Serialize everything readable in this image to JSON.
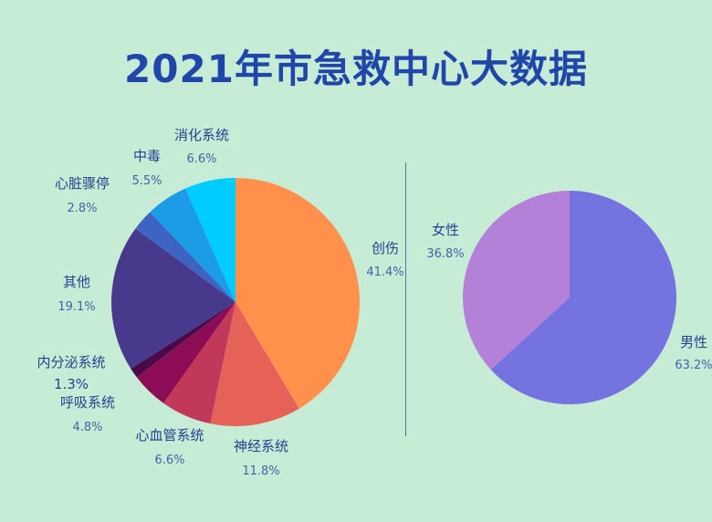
{
  "title": "2021年市急救中心大数据",
  "colors": {
    "background": "#c6ecd6",
    "title": "#1f46a8"
  },
  "chart_data": [
    {
      "type": "pie",
      "slices": [
        {
          "label": "创伤",
          "value_text": "41.4%",
          "value": 41.4,
          "color": "#ff914d"
        },
        {
          "label": "神经系统",
          "value_text": "11.8%",
          "value": 11.8,
          "color": "#e66157"
        },
        {
          "label": "心血管系统",
          "value_text": "6.6%",
          "value": 6.6,
          "color": "#c2385a"
        },
        {
          "label": "呼吸系统",
          "value_text": "4.8%",
          "value": 4.8,
          "color": "#8c0d56"
        },
        {
          "label": "内分泌系统",
          "value_text": "1.3%",
          "value": 1.3,
          "color": "#4a0a4a"
        },
        {
          "label": "其他",
          "value_text": "19.1%",
          "value": 19.1,
          "color": "#473a8c"
        },
        {
          "label": "心脏骤停",
          "value_text": "2.8%",
          "value": 2.8,
          "color": "#3d64c2"
        },
        {
          "label": "中毒",
          "value_text": "5.5%",
          "value": 5.5,
          "color": "#1c9be6"
        },
        {
          "label": "消化系统",
          "value_text": "6.6%",
          "value": 6.6,
          "color": "#00ccff"
        }
      ]
    },
    {
      "type": "pie",
      "slices": [
        {
          "label": "男性",
          "value_text": "63.2%",
          "value": 63.2,
          "color": "#7473df"
        },
        {
          "label": "女性",
          "value_text": "36.8%",
          "value": 36.8,
          "color": "#b381d7"
        }
      ]
    }
  ]
}
